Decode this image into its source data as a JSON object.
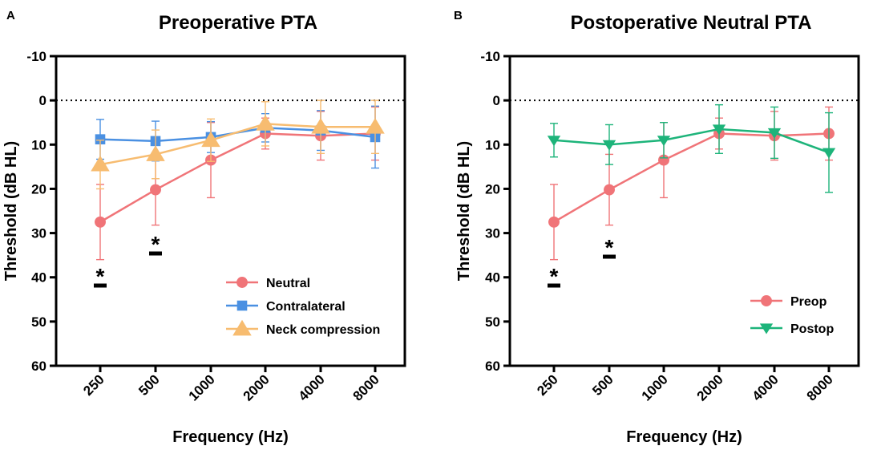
{
  "chart_data": [
    {
      "panel": "A",
      "type": "line",
      "title": "Preoperative  PTA",
      "xlabel": "Frequency (Hz)",
      "ylabel": "Threshold (dB  HL)",
      "categories": [
        "250",
        "500",
        "1000",
        "2000",
        "4000",
        "8000"
      ],
      "ylim": [
        60,
        -10
      ],
      "yticks": [
        "-10",
        "0",
        "10",
        "20",
        "30",
        "40",
        "50",
        "60"
      ],
      "ytick_values": [
        -10,
        0,
        10,
        20,
        30,
        40,
        50,
        60
      ],
      "reference_line": 0,
      "legend_position": "lower-right",
      "series": [
        {
          "name": "Neutral",
          "color": "#F07478",
          "marker": "circle",
          "values": [
            27.5,
            20.2,
            13.5,
            7.5,
            8.0,
            7.5
          ],
          "errors": [
            8.5,
            8.0,
            8.5,
            3.5,
            5.5,
            6.0
          ]
        },
        {
          "name": "Contralateral",
          "color": "#4A90E2",
          "marker": "square",
          "values": [
            8.8,
            9.2,
            8.3,
            6.2,
            6.8,
            8.3
          ],
          "errors": [
            4.5,
            4.5,
            3.5,
            3.2,
            4.5,
            7.0
          ]
        },
        {
          "name": "Neck compression",
          "color": "#F7BC70",
          "marker": "triangle-up",
          "values": [
            14.5,
            12.2,
            9.0,
            5.3,
            6.0,
            6.0
          ],
          "errors": [
            5.5,
            5.5,
            4.8,
            5.0,
            6.0,
            6.0
          ]
        }
      ],
      "significance": [
        {
          "category": "250",
          "label": "*"
        },
        {
          "category": "500",
          "label": "*"
        }
      ]
    },
    {
      "panel": "B",
      "type": "line",
      "title": "Postoperative Neutral PTA",
      "xlabel": "Frequency (Hz)",
      "ylabel": "Threshold (dB  HL)",
      "categories": [
        "250",
        "500",
        "1000",
        "2000",
        "4000",
        "8000"
      ],
      "ylim": [
        60,
        -10
      ],
      "yticks": [
        "-10",
        "0",
        "10",
        "20",
        "30",
        "40",
        "50",
        "60"
      ],
      "ytick_values": [
        -10,
        0,
        10,
        20,
        30,
        40,
        50,
        60
      ],
      "reference_line": 0,
      "legend_position": "lower-right",
      "series": [
        {
          "name": "Preop",
          "color": "#F07478",
          "marker": "circle",
          "values": [
            27.5,
            20.2,
            13.5,
            7.5,
            8.0,
            7.5
          ],
          "errors": [
            8.5,
            8.0,
            8.5,
            3.5,
            5.5,
            6.0
          ]
        },
        {
          "name": "Postop",
          "color": "#1DB47A",
          "marker": "triangle-down",
          "values": [
            9.0,
            10.0,
            9.0,
            6.5,
            7.3,
            11.8
          ],
          "errors": [
            3.8,
            4.5,
            4.0,
            5.5,
            5.8,
            9.0
          ]
        }
      ],
      "significance": [
        {
          "category": "250",
          "label": "*"
        },
        {
          "category": "500",
          "label": "*"
        }
      ]
    }
  ]
}
